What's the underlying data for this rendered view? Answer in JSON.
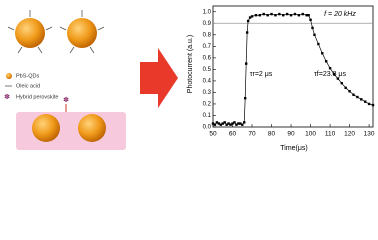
{
  "schematic": {
    "legend": [
      "PbS-QDs",
      "Oleic acid",
      "Hybrid perovskite"
    ]
  },
  "chart_data": {
    "type": "line",
    "annotations": [
      "f = 20 kHz",
      "τr=2 μs",
      "τf=23.8 μs"
    ],
    "x_label": "Time(μs)",
    "y_label": "Photocurrent (a.u.)",
    "xlim": [
      50,
      132
    ],
    "xticks": [
      50,
      60,
      70,
      80,
      90,
      100,
      110,
      120,
      130
    ],
    "ylim": [
      0,
      1.05
    ],
    "yticks": [
      {
        "value": 0,
        "label": "0.0"
      },
      0.1,
      0.2,
      0.3,
      0.4,
      0.5,
      0.6,
      0.7,
      0.8,
      0.9,
      {
        "value": 1,
        "label": "1.0"
      }
    ],
    "reference_line": 0.9,
    "reference_color": "#999999",
    "series": [
      {
        "color": "#000000",
        "x": [
          50,
          51,
          52,
          53,
          54,
          55,
          56,
          57,
          58,
          59,
          60,
          61,
          62,
          63,
          64,
          65,
          66,
          66.5,
          67,
          67.5,
          68,
          69,
          70,
          72,
          74,
          76,
          78,
          80,
          82,
          84,
          86,
          88,
          90,
          92,
          94,
          96,
          98,
          99,
          100,
          101,
          102,
          104,
          106,
          108,
          110,
          112,
          114,
          116,
          118,
          120,
          122,
          124,
          126,
          128,
          130,
          132
        ],
        "values": [
          0.03,
          0.02,
          0.04,
          0.03,
          0.02,
          0.03,
          0.04,
          0.02,
          0.03,
          0.02,
          0.03,
          0.04,
          0.02,
          0.03,
          0.03,
          0.02,
          0.04,
          0.25,
          0.55,
          0.82,
          0.92,
          0.95,
          0.96,
          0.97,
          0.97,
          0.98,
          0.97,
          0.98,
          0.97,
          0.98,
          0.97,
          0.98,
          0.97,
          0.98,
          0.97,
          0.98,
          0.97,
          0.97,
          0.93,
          0.86,
          0.8,
          0.72,
          0.64,
          0.57,
          0.51,
          0.46,
          0.42,
          0.38,
          0.34,
          0.31,
          0.28,
          0.26,
          0.24,
          0.22,
          0.2,
          0.19
        ]
      }
    ]
  }
}
